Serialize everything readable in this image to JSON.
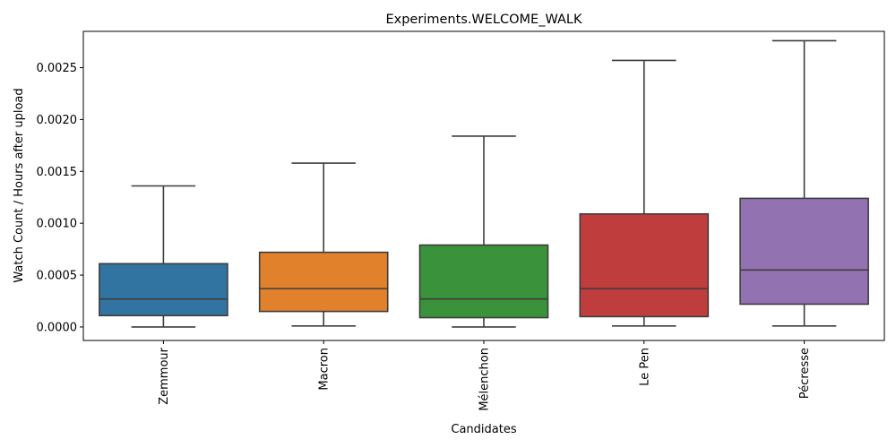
{
  "chart_data": {
    "type": "box",
    "title": "Experiments.WELCOME_WALK",
    "xlabel": "Candidates",
    "ylabel": "Watch Count / Hours after upload",
    "ylim": [
      -0.00013,
      0.00285
    ],
    "yticks": [
      0.0,
      0.0005,
      0.001,
      0.0015,
      0.002,
      0.0025
    ],
    "ytick_labels": [
      "0.0000",
      "0.0005",
      "0.0010",
      "0.0015",
      "0.0020",
      "0.0025"
    ],
    "grid": false,
    "categories": [
      "Zemmour",
      "Macron",
      "Mélenchon",
      "Le Pen",
      "Pécresse"
    ],
    "boxes": [
      {
        "category": "Zemmour",
        "whisker_low": 0.0,
        "q1": 0.00011,
        "median": 0.00027,
        "q3": 0.00061,
        "whisker_high": 0.00136,
        "color": "#3274a1"
      },
      {
        "category": "Macron",
        "whisker_low": 1e-05,
        "q1": 0.00015,
        "median": 0.00037,
        "q3": 0.00072,
        "whisker_high": 0.00158,
        "color": "#e1812c"
      },
      {
        "category": "Mélenchon",
        "whisker_low": 0.0,
        "q1": 9e-05,
        "median": 0.00027,
        "q3": 0.00079,
        "whisker_high": 0.00184,
        "color": "#3a923a"
      },
      {
        "category": "Le Pen",
        "whisker_low": 1e-05,
        "q1": 0.0001,
        "median": 0.00037,
        "q3": 0.00109,
        "whisker_high": 0.00257,
        "color": "#c03d3e"
      },
      {
        "category": "Pécresse",
        "whisker_low": 1e-05,
        "q1": 0.00022,
        "median": 0.00055,
        "q3": 0.00124,
        "whisker_high": 0.00276,
        "color": "#9372b2"
      }
    ]
  }
}
